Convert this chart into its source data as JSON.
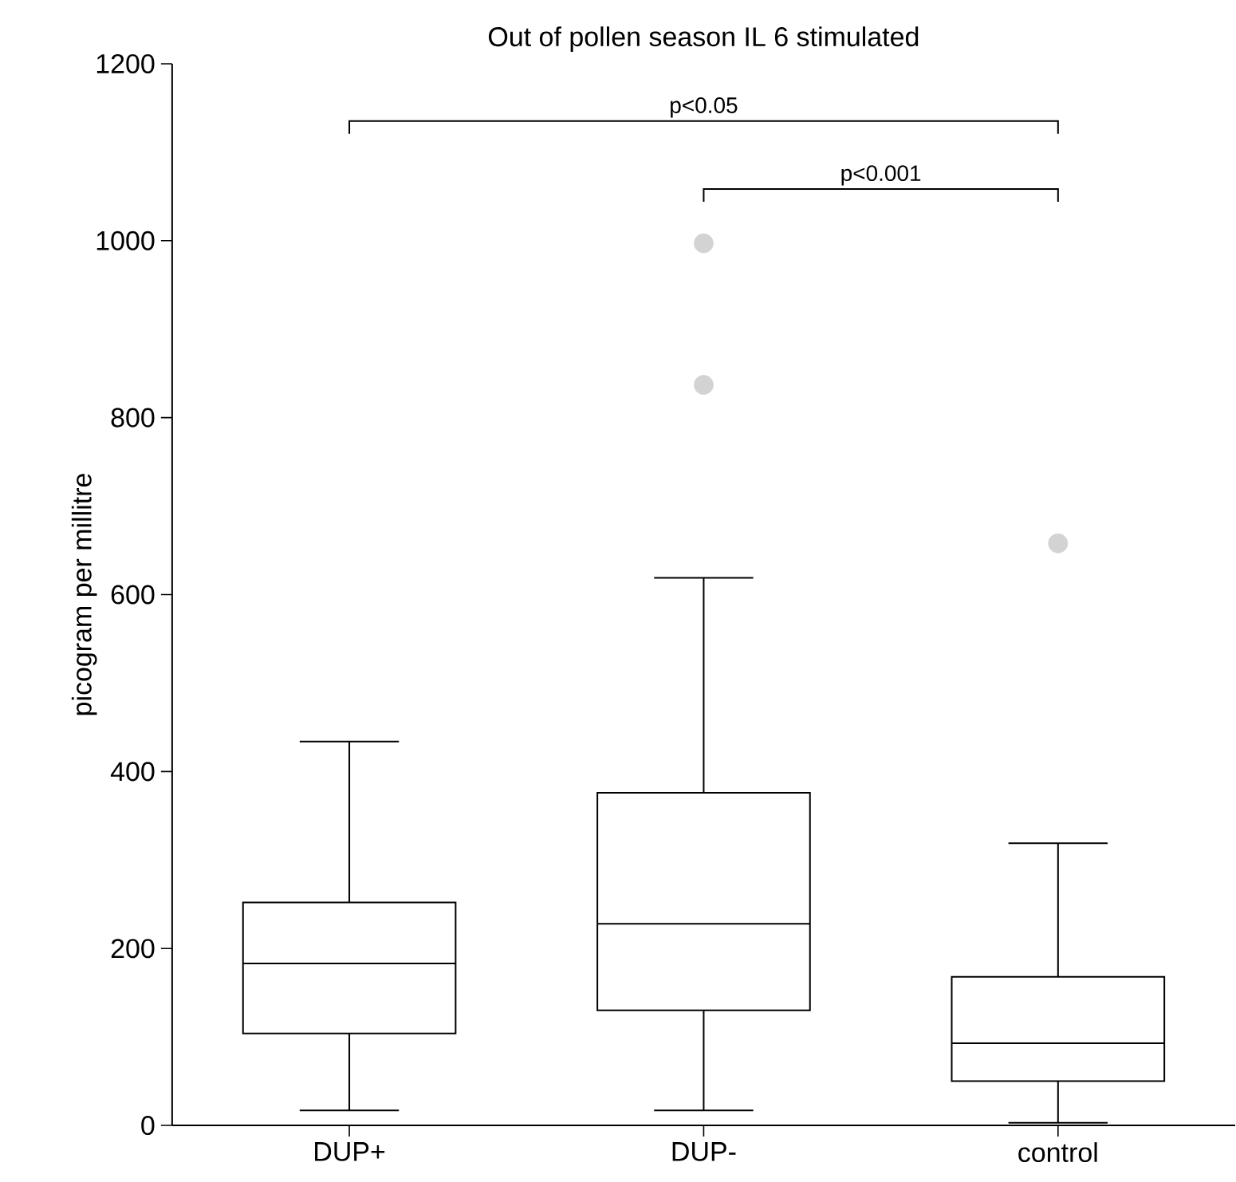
{
  "chart_data": {
    "type": "box",
    "title": "Out of pollen season IL 6 stimulated",
    "ylabel": "picogram per millitre",
    "categories": [
      "DUP+",
      "DUP-",
      "control"
    ],
    "boxes": [
      {
        "low": 17,
        "q1": 104,
        "median": 183,
        "q3": 252,
        "high": 434
      },
      {
        "low": 17,
        "q1": 130,
        "median": 228,
        "q3": 376,
        "high": 619,
        "outliers": [
          997,
          837
        ]
      },
      {
        "low": 3,
        "q1": 50,
        "median": 93,
        "q3": 168,
        "high": 319,
        "outliers": [
          658
        ]
      }
    ],
    "color": "#000000",
    "ylim": [
      0,
      1200
    ],
    "yticks": [
      0,
      200,
      400,
      600,
      800,
      1000,
      1200
    ],
    "annotations": [
      "p<0.05",
      "p<0.001"
    ]
  }
}
